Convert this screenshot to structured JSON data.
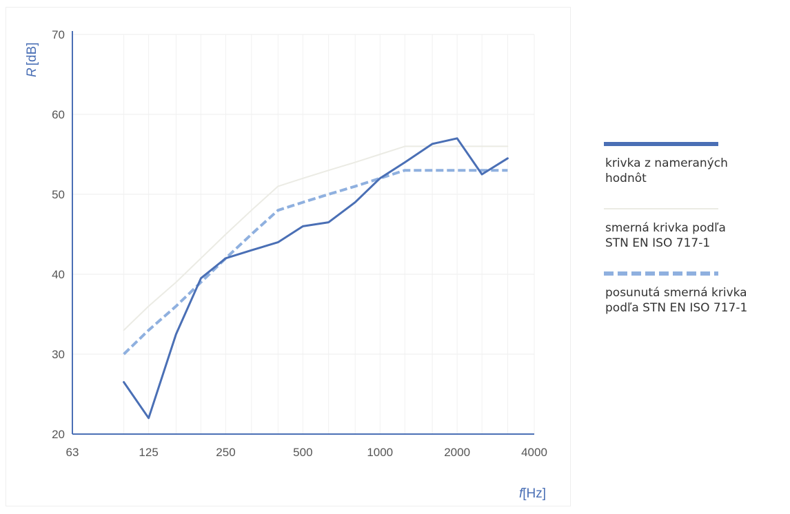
{
  "chart_data": {
    "type": "line",
    "xscale": "log",
    "xlabel": {
      "symbol": "f",
      "unit": "[Hz]"
    },
    "ylabel": {
      "symbol": "R",
      "unit": "[dB]"
    },
    "ylim": [
      20,
      70
    ],
    "yticks": [
      20,
      30,
      40,
      50,
      60,
      70
    ],
    "xticks": [
      63,
      125,
      250,
      500,
      1000,
      2000,
      4000
    ],
    "xlim": [
      63,
      4000
    ],
    "grid": true,
    "legend_position": "right",
    "x": [
      100,
      125,
      160,
      200,
      250,
      315,
      400,
      500,
      630,
      800,
      1000,
      1250,
      1600,
      2000,
      2500,
      3150
    ],
    "series": [
      {
        "name": "krivka z nameraných\nhodnôt",
        "style": "solid",
        "color": "#4a6fb5",
        "values": [
          26.5,
          22,
          32.5,
          39.5,
          42,
          43,
          44,
          46,
          46.5,
          49,
          52,
          54,
          56.3,
          57,
          52.5,
          54.5
        ]
      },
      {
        "name": "smerná krivka podľa\nSTN EN ISO 717-1",
        "style": "solid-light",
        "color": "#ebebe4",
        "values": [
          33,
          36,
          39,
          42,
          45,
          48,
          51,
          52,
          53,
          54,
          55,
          56,
          56,
          56,
          56,
          56
        ]
      },
      {
        "name": "posunutá smerná krivka\npodľa STN EN ISO 717-1",
        "style": "dashed",
        "color": "#8fb0df",
        "values": [
          30,
          33,
          36,
          39,
          42,
          45,
          48,
          49,
          50,
          51,
          52,
          53,
          53,
          53,
          53,
          53
        ]
      }
    ]
  }
}
